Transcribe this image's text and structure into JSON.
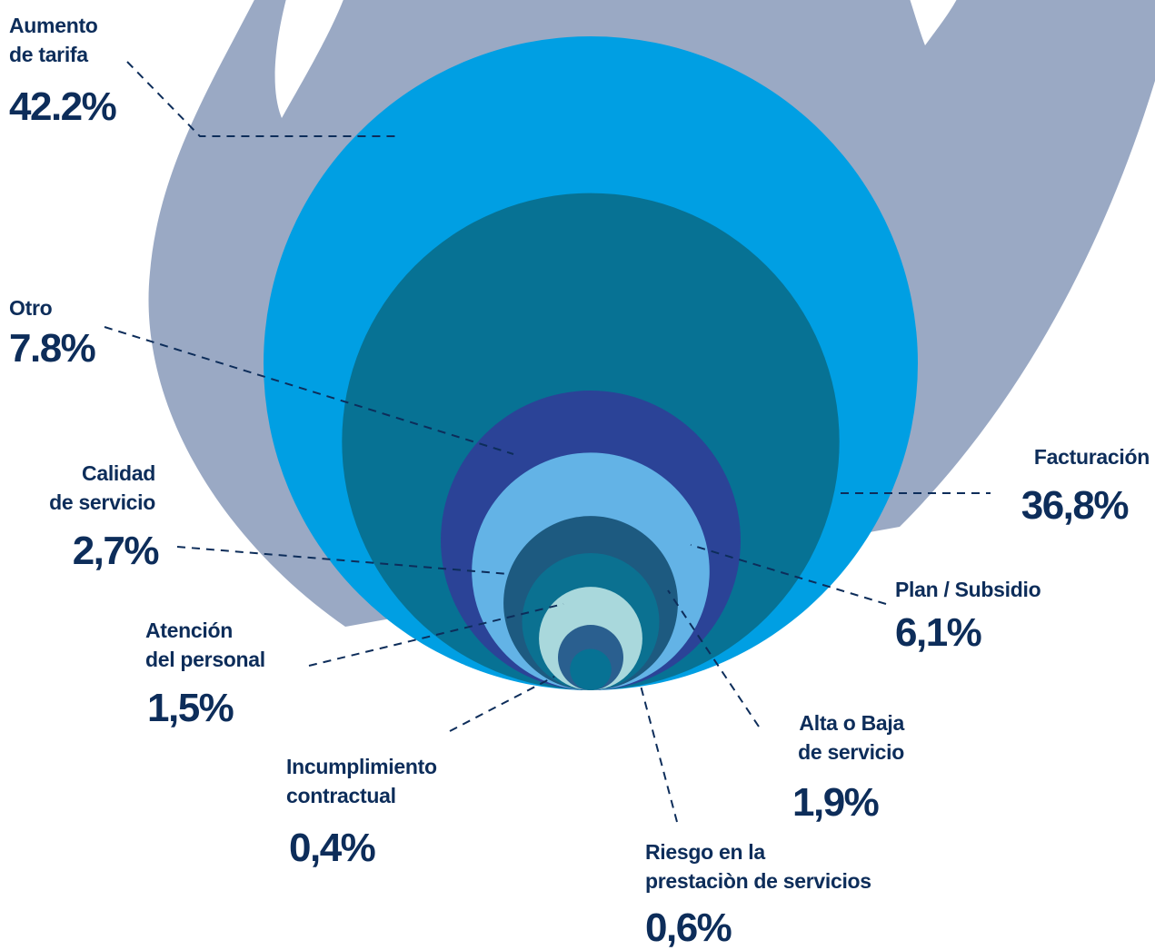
{
  "chart_data": {
    "type": "nested-circles",
    "categories": [
      "Aumento\nde tarifa",
      "Facturación",
      "Otro",
      "Plan / Subsidio",
      "Calidad\nde servicio",
      "Alta o Baja\nde servicio",
      "Atención\ndel personal",
      "Riesgo en la\nprestaciòn de servicios",
      "Incumplimiento\ncontractual"
    ],
    "values": [
      42.2,
      36.8,
      7.8,
      6.1,
      2.7,
      1.9,
      1.5,
      0.6,
      0.4
    ],
    "value_labels": [
      "42.2%",
      "36,8%",
      "7.8%",
      "6,1%",
      "2,7%",
      "1,9%",
      "1,5%",
      "0,6%",
      "0,4%"
    ],
    "colors": [
      "#009fe3",
      "#077294",
      "#2b4397",
      "#63b3e6",
      "#1d5a80",
      "#0b7191",
      "#a9d8dc",
      "#2a5f8f",
      "#077294"
    ],
    "flame_color": "#9aa9c4"
  }
}
